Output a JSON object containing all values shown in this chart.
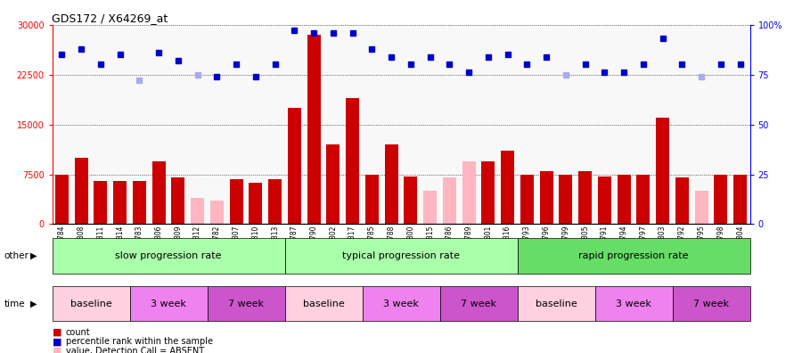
{
  "title": "GDS172 / X64269_at",
  "samples": [
    "GSM2784",
    "GSM2808",
    "GSM2811",
    "GSM2814",
    "GSM2783",
    "GSM2806",
    "GSM2809",
    "GSM2812",
    "GSM2782",
    "GSM2807",
    "GSM2810",
    "GSM2813",
    "GSM2787",
    "GSM2790",
    "GSM2802",
    "GSM2817",
    "GSM2785",
    "GSM2788",
    "GSM2800",
    "GSM2815",
    "GSM2786",
    "GSM2789",
    "GSM2801",
    "GSM2816",
    "GSM2793",
    "GSM2796",
    "GSM2799",
    "GSM2805",
    "GSM2791",
    "GSM2794",
    "GSM2797",
    "GSM2803",
    "GSM2792",
    "GSM2795",
    "GSM2798",
    "GSM2804"
  ],
  "count_values": [
    7500,
    10000,
    6500,
    6500,
    6500,
    9500,
    7000,
    4000,
    3500,
    6800,
    6200,
    6800,
    17500,
    28500,
    12000,
    19000,
    7500,
    12000,
    7200,
    5000,
    7000,
    9500,
    9500,
    11000,
    7500,
    8000,
    7500,
    8000,
    7200,
    7500,
    7500,
    16000,
    7000,
    5000,
    7500,
    7500
  ],
  "count_absent": [
    false,
    false,
    false,
    false,
    false,
    false,
    false,
    true,
    true,
    false,
    false,
    false,
    false,
    false,
    false,
    false,
    false,
    false,
    false,
    true,
    true,
    true,
    false,
    false,
    false,
    false,
    false,
    false,
    false,
    false,
    false,
    false,
    false,
    true,
    false,
    false
  ],
  "rank_values": [
    85,
    88,
    80,
    85,
    72,
    86,
    82,
    75,
    74,
    80,
    74,
    80,
    97,
    96,
    96,
    96,
    88,
    84,
    80,
    84,
    80,
    76,
    84,
    85,
    80,
    84,
    75,
    80,
    76,
    76,
    80,
    93,
    80,
    74,
    80,
    80
  ],
  "rank_absent": [
    false,
    false,
    false,
    false,
    true,
    false,
    false,
    true,
    false,
    false,
    false,
    false,
    false,
    false,
    false,
    false,
    false,
    false,
    false,
    false,
    false,
    false,
    false,
    false,
    false,
    false,
    true,
    false,
    false,
    false,
    false,
    false,
    false,
    true,
    false,
    false
  ],
  "groups": [
    {
      "label": "slow progression rate",
      "start": 0,
      "end": 11,
      "color": "#AAFFAA"
    },
    {
      "label": "typical progression rate",
      "start": 12,
      "end": 23,
      "color": "#AAFFAA"
    },
    {
      "label": "rapid progression rate",
      "start": 24,
      "end": 35,
      "color": "#66DD66"
    }
  ],
  "time_groups": [
    {
      "label": "baseline",
      "start": 0,
      "end": 3,
      "color": "#FFD0E0"
    },
    {
      "label": "3 week",
      "start": 4,
      "end": 7,
      "color": "#EE82EE"
    },
    {
      "label": "7 week",
      "start": 8,
      "end": 11,
      "color": "#CC55CC"
    },
    {
      "label": "baseline",
      "start": 12,
      "end": 15,
      "color": "#FFD0E0"
    },
    {
      "label": "3 week",
      "start": 16,
      "end": 19,
      "color": "#EE82EE"
    },
    {
      "label": "7 week",
      "start": 20,
      "end": 23,
      "color": "#CC55CC"
    },
    {
      "label": "baseline",
      "start": 24,
      "end": 27,
      "color": "#FFD0E0"
    },
    {
      "label": "3 week",
      "start": 28,
      "end": 31,
      "color": "#EE82EE"
    },
    {
      "label": "7 week",
      "start": 32,
      "end": 35,
      "color": "#CC55CC"
    }
  ],
  "ylim_left": [
    0,
    30000
  ],
  "ylim_right": [
    0,
    100
  ],
  "yticks_left": [
    0,
    7500,
    15000,
    22500,
    30000
  ],
  "yticks_right": [
    0,
    25,
    50,
    75,
    100
  ],
  "bar_color_present": "#CC0000",
  "bar_color_absent": "#FFB6C1",
  "dot_color_present": "#0000CC",
  "dot_color_absent": "#AAAAEE",
  "bg_color": "#F8F8F8"
}
